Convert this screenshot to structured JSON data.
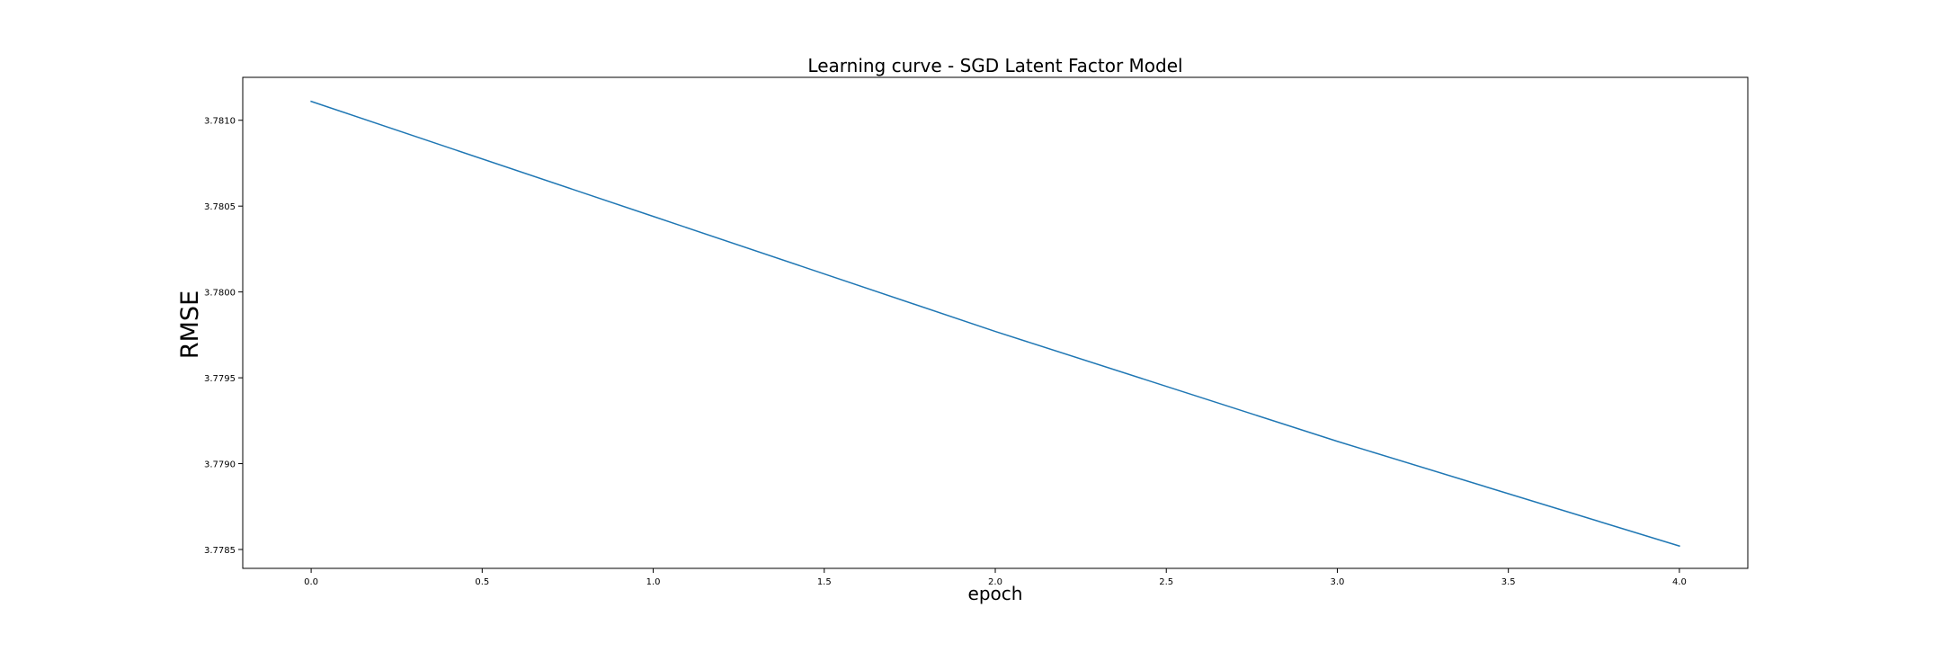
{
  "chart_data": {
    "type": "line",
    "title": "Learning curve - SGD Latent Factor Model",
    "xlabel": "epoch",
    "ylabel": "RMSE",
    "xlim": [
      -0.2,
      4.2
    ],
    "ylim": [
      3.77839,
      3.78125
    ],
    "xticks": [
      0.0,
      0.5,
      1.0,
      1.5,
      2.0,
      2.5,
      3.0,
      3.5,
      4.0
    ],
    "xtick_labels": [
      "0.0",
      "0.5",
      "1.0",
      "1.5",
      "2.0",
      "2.5",
      "3.0",
      "3.5",
      "4.0"
    ],
    "yticks": [
      3.7785,
      3.779,
      3.7795,
      3.78,
      3.7805,
      3.781
    ],
    "ytick_labels": [
      "3.7785",
      "3.7790",
      "3.7795",
      "3.7800",
      "3.7805",
      "3.7810"
    ],
    "grid": false,
    "series": [
      {
        "color": "#1f77b4",
        "x": [
          0,
          1,
          2,
          3,
          4
        ],
        "y": [
          3.78111,
          3.78044,
          3.77977,
          3.77913,
          3.77852
        ]
      }
    ]
  }
}
